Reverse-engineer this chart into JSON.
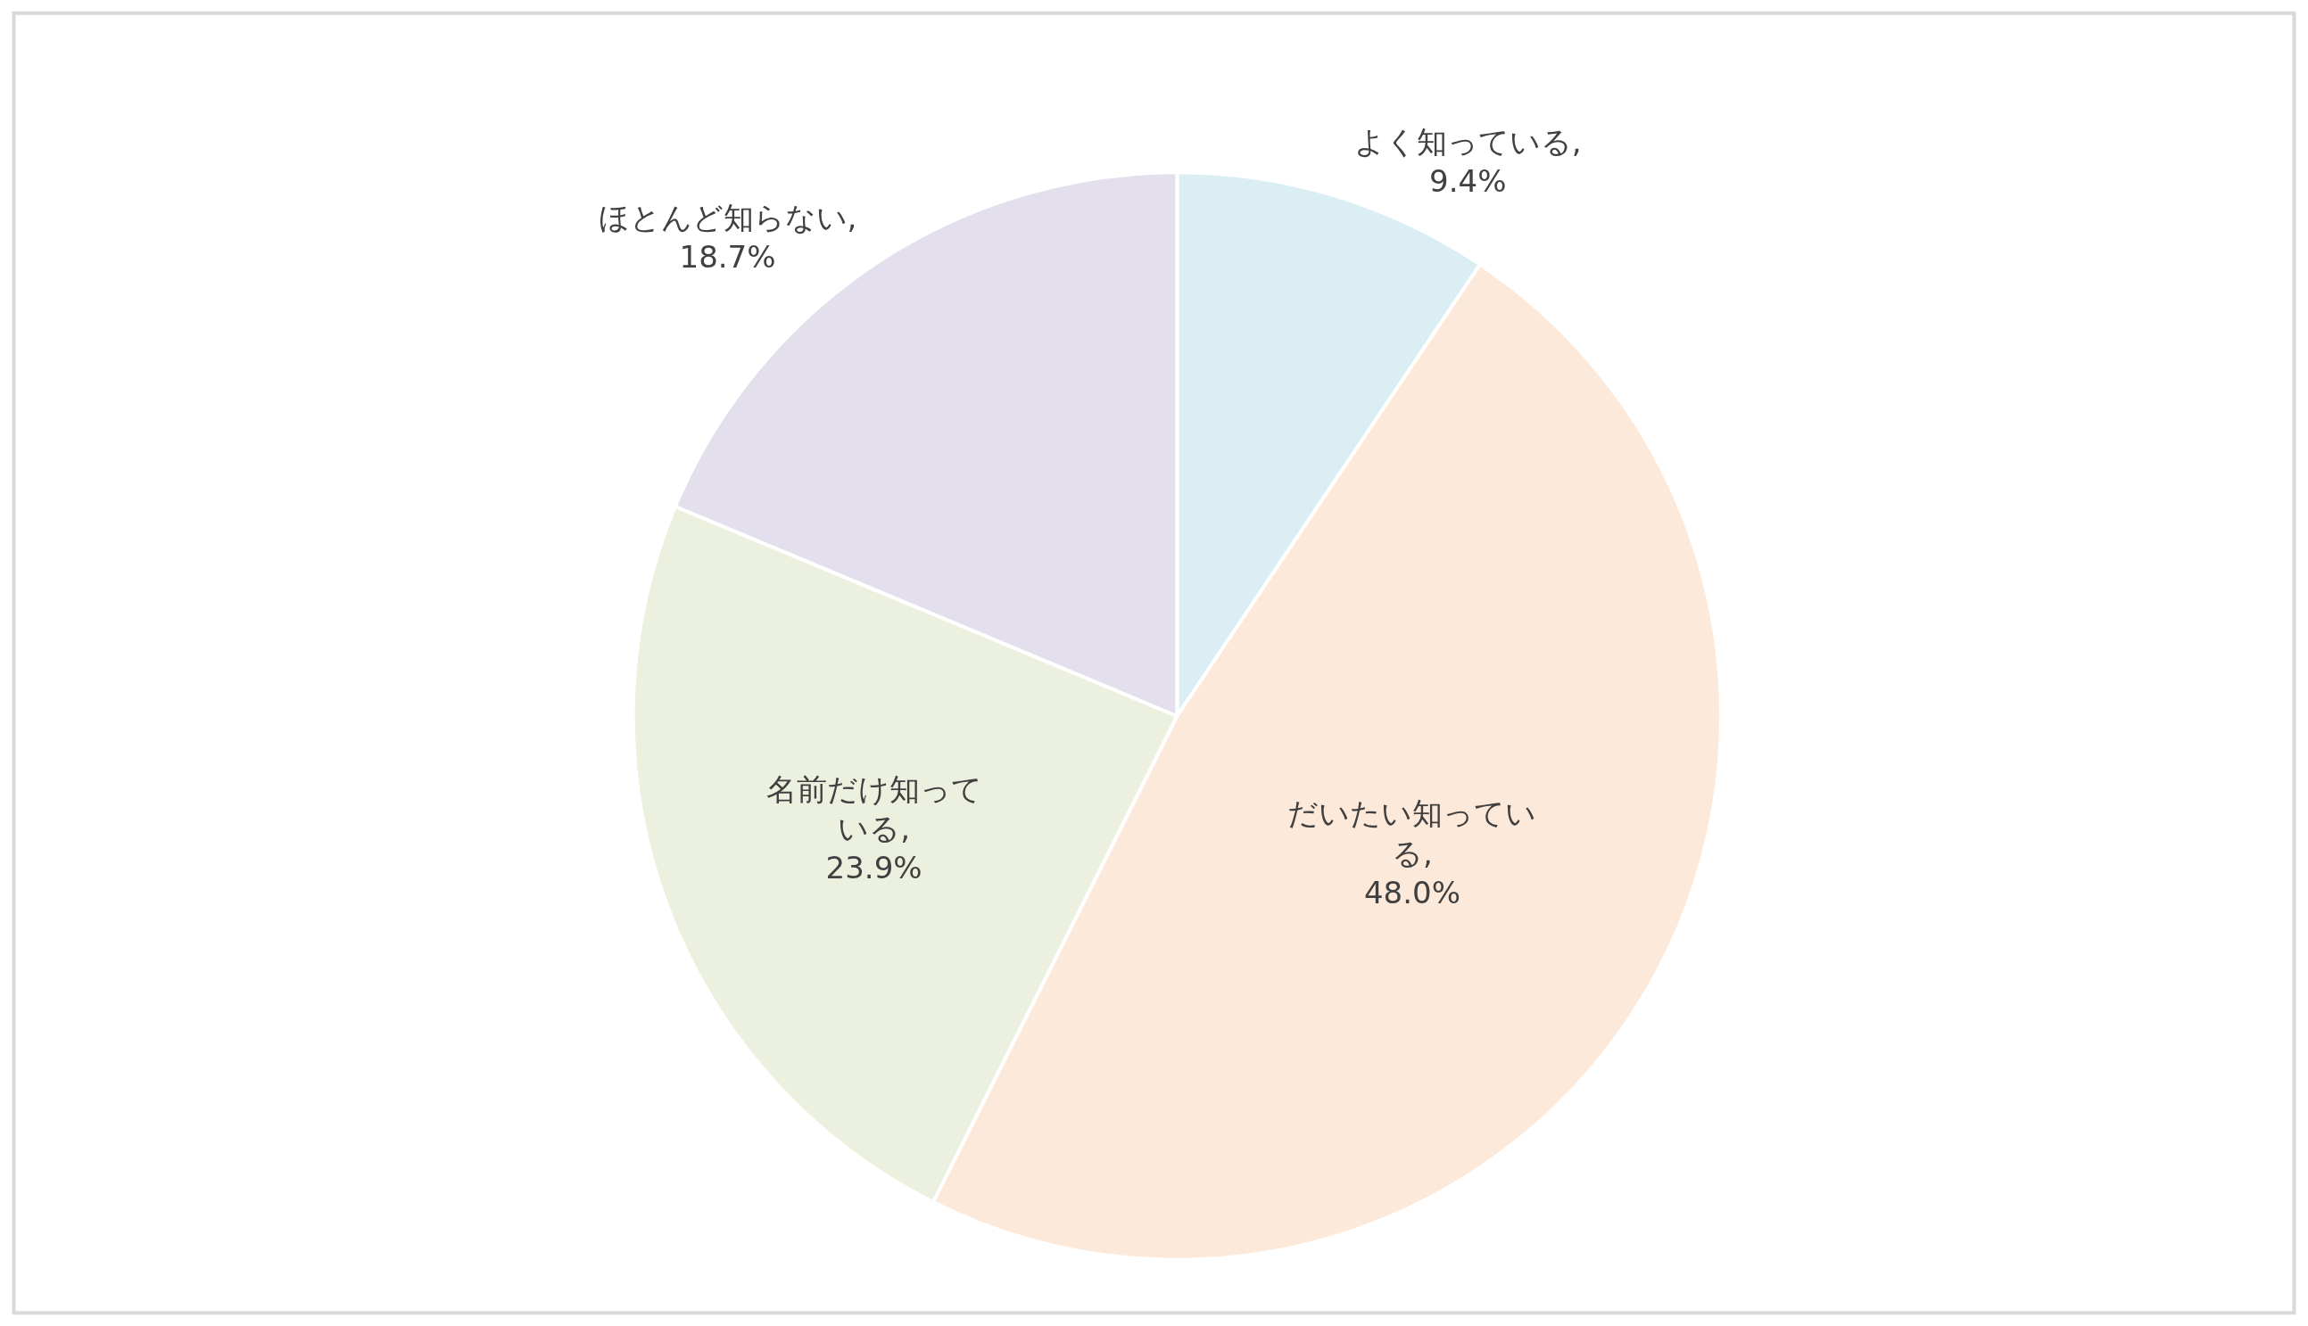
{
  "chart_data": {
    "type": "pie",
    "categories": [
      "よく知っている",
      "だいたい知っている",
      "名前だけ知っている",
      "ほとんど知らない"
    ],
    "values": [
      9.4,
      48.0,
      23.9,
      18.7
    ],
    "colors": [
      "#daeef3",
      "#fde9d9",
      "#ebf1de",
      "#e4dfec"
    ],
    "value_labels": [
      ",\n9.4%",
      ",\n48.0%",
      ",\n23.9%",
      ",\n18.7%"
    ],
    "legend": false
  }
}
